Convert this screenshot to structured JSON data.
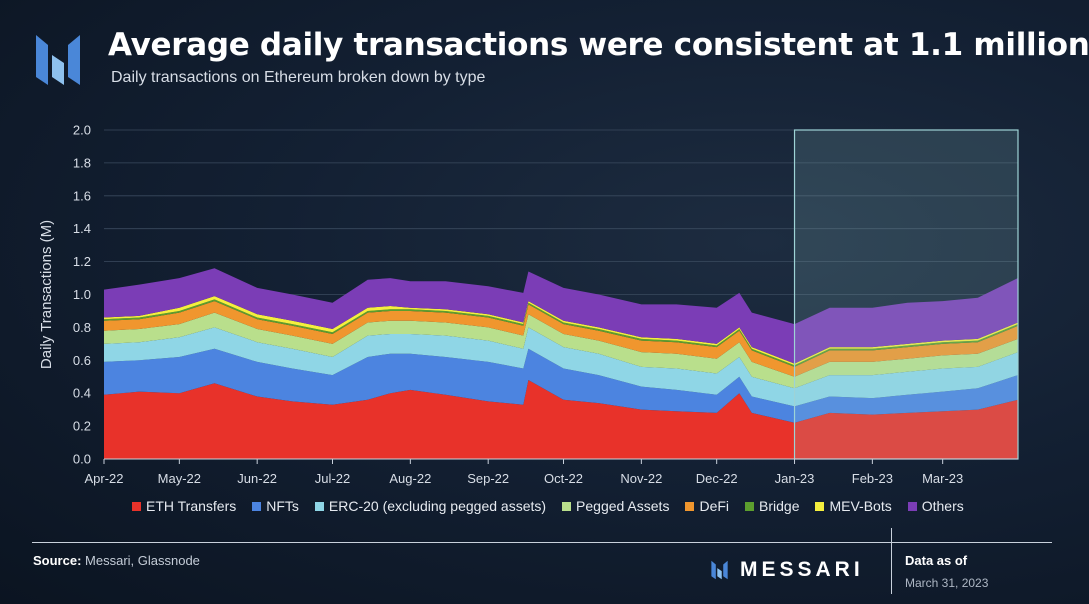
{
  "header": {
    "title": "Average daily transactions were consistent at 1.1 million",
    "subtitle": "Daily transactions on Ethereum broken down by type",
    "logo_icon": "messari-logo-icon"
  },
  "footer": {
    "source_label": "Source:",
    "source_value": "Messari, Glassnode",
    "brand": "MESSARI",
    "asof_label": "Data as of",
    "asof_date": "March 31, 2023"
  },
  "colors": {
    "ETH Transfers": "#e8322a",
    "NFTs": "#4c84e0",
    "ERC-20 (excluding pegged assets)": "#8fd6e6",
    "Pegged Assets": "#b9df8c",
    "DeFi": "#f0962e",
    "Bridge": "#5c9e2e",
    "MEV-Bots": "#f5ef3e",
    "Others": "#7b3db6",
    "highlight": "#9ed3d6"
  },
  "chart_data": {
    "type": "area",
    "stacked": true,
    "title": "Average daily transactions were consistent at 1.1 million",
    "subtitle": "Daily transactions on Ethereum broken down by type",
    "xlabel": "",
    "ylabel": "Daily Transactions (M)",
    "ylim": [
      0,
      2.0
    ],
    "yticks": [
      "0.0",
      "0.2",
      "0.4",
      "0.6",
      "0.8",
      "1.0",
      "1.2",
      "1.4",
      "1.6",
      "1.8",
      "2.0"
    ],
    "xlim": [
      "2022-04-01",
      "2023-03-31"
    ],
    "xticks": [
      "Apr-22",
      "May-22",
      "Jun-22",
      "Jul-22",
      "Aug-22",
      "Sep-22",
      "Oct-22",
      "Nov-22",
      "Dec-22",
      "Jan-23",
      "Feb-23",
      "Mar-23"
    ],
    "grid": true,
    "legend_position": "bottom",
    "highlight_range": [
      "2023-01-01",
      "2023-03-31"
    ],
    "x": [
      "2022-04-01",
      "2022-04-15",
      "2022-05-01",
      "2022-05-15",
      "2022-06-01",
      "2022-06-15",
      "2022-07-01",
      "2022-07-15",
      "2022-07-24",
      "2022-08-01",
      "2022-08-15",
      "2022-09-01",
      "2022-09-15",
      "2022-09-17",
      "2022-10-01",
      "2022-10-15",
      "2022-11-01",
      "2022-11-15",
      "2022-12-01",
      "2022-12-10",
      "2022-12-15",
      "2023-01-01",
      "2023-01-15",
      "2023-02-01",
      "2023-02-15",
      "2023-03-01",
      "2023-03-15",
      "2023-03-31"
    ],
    "series": [
      {
        "name": "ETH Transfers",
        "values": [
          0.39,
          0.41,
          0.4,
          0.46,
          0.38,
          0.35,
          0.33,
          0.36,
          0.4,
          0.42,
          0.39,
          0.35,
          0.33,
          0.48,
          0.36,
          0.34,
          0.3,
          0.29,
          0.28,
          0.4,
          0.28,
          0.22,
          0.28,
          0.27,
          0.28,
          0.29,
          0.3,
          0.36
        ]
      },
      {
        "name": "NFTs",
        "values": [
          0.2,
          0.19,
          0.22,
          0.21,
          0.21,
          0.2,
          0.18,
          0.26,
          0.24,
          0.22,
          0.23,
          0.24,
          0.22,
          0.19,
          0.19,
          0.17,
          0.14,
          0.13,
          0.11,
          0.1,
          0.1,
          0.1,
          0.1,
          0.1,
          0.11,
          0.12,
          0.13,
          0.15
        ]
      },
      {
        "name": "ERC-20 (excluding pegged assets)",
        "values": [
          0.11,
          0.11,
          0.12,
          0.13,
          0.12,
          0.12,
          0.11,
          0.13,
          0.12,
          0.12,
          0.13,
          0.13,
          0.12,
          0.13,
          0.13,
          0.13,
          0.12,
          0.13,
          0.13,
          0.12,
          0.12,
          0.11,
          0.13,
          0.14,
          0.14,
          0.14,
          0.13,
          0.14
        ]
      },
      {
        "name": "Pegged Assets",
        "values": [
          0.08,
          0.08,
          0.08,
          0.09,
          0.08,
          0.08,
          0.08,
          0.08,
          0.08,
          0.08,
          0.08,
          0.08,
          0.08,
          0.08,
          0.08,
          0.08,
          0.09,
          0.09,
          0.09,
          0.09,
          0.09,
          0.07,
          0.08,
          0.08,
          0.08,
          0.08,
          0.08,
          0.08
        ]
      },
      {
        "name": "DeFi",
        "values": [
          0.06,
          0.06,
          0.07,
          0.07,
          0.06,
          0.06,
          0.06,
          0.06,
          0.06,
          0.06,
          0.06,
          0.06,
          0.06,
          0.06,
          0.06,
          0.06,
          0.07,
          0.07,
          0.07,
          0.07,
          0.07,
          0.06,
          0.07,
          0.07,
          0.07,
          0.07,
          0.07,
          0.08
        ]
      },
      {
        "name": "Bridge",
        "values": [
          0.01,
          0.01,
          0.01,
          0.01,
          0.01,
          0.01,
          0.01,
          0.01,
          0.01,
          0.01,
          0.01,
          0.01,
          0.01,
          0.01,
          0.01,
          0.01,
          0.01,
          0.01,
          0.01,
          0.01,
          0.01,
          0.01,
          0.01,
          0.01,
          0.01,
          0.01,
          0.01,
          0.01
        ]
      },
      {
        "name": "MEV-Bots",
        "values": [
          0.01,
          0.01,
          0.02,
          0.02,
          0.02,
          0.02,
          0.02,
          0.02,
          0.02,
          0.01,
          0.01,
          0.01,
          0.01,
          0.01,
          0.01,
          0.01,
          0.01,
          0.01,
          0.01,
          0.01,
          0.01,
          0.01,
          0.01,
          0.01,
          0.01,
          0.01,
          0.01,
          0.01
        ]
      },
      {
        "name": "Others",
        "values": [
          0.17,
          0.19,
          0.18,
          0.17,
          0.16,
          0.16,
          0.16,
          0.17,
          0.17,
          0.16,
          0.17,
          0.17,
          0.18,
          0.18,
          0.2,
          0.2,
          0.2,
          0.21,
          0.22,
          0.21,
          0.21,
          0.24,
          0.24,
          0.24,
          0.25,
          0.24,
          0.25,
          0.27
        ]
      }
    ]
  }
}
